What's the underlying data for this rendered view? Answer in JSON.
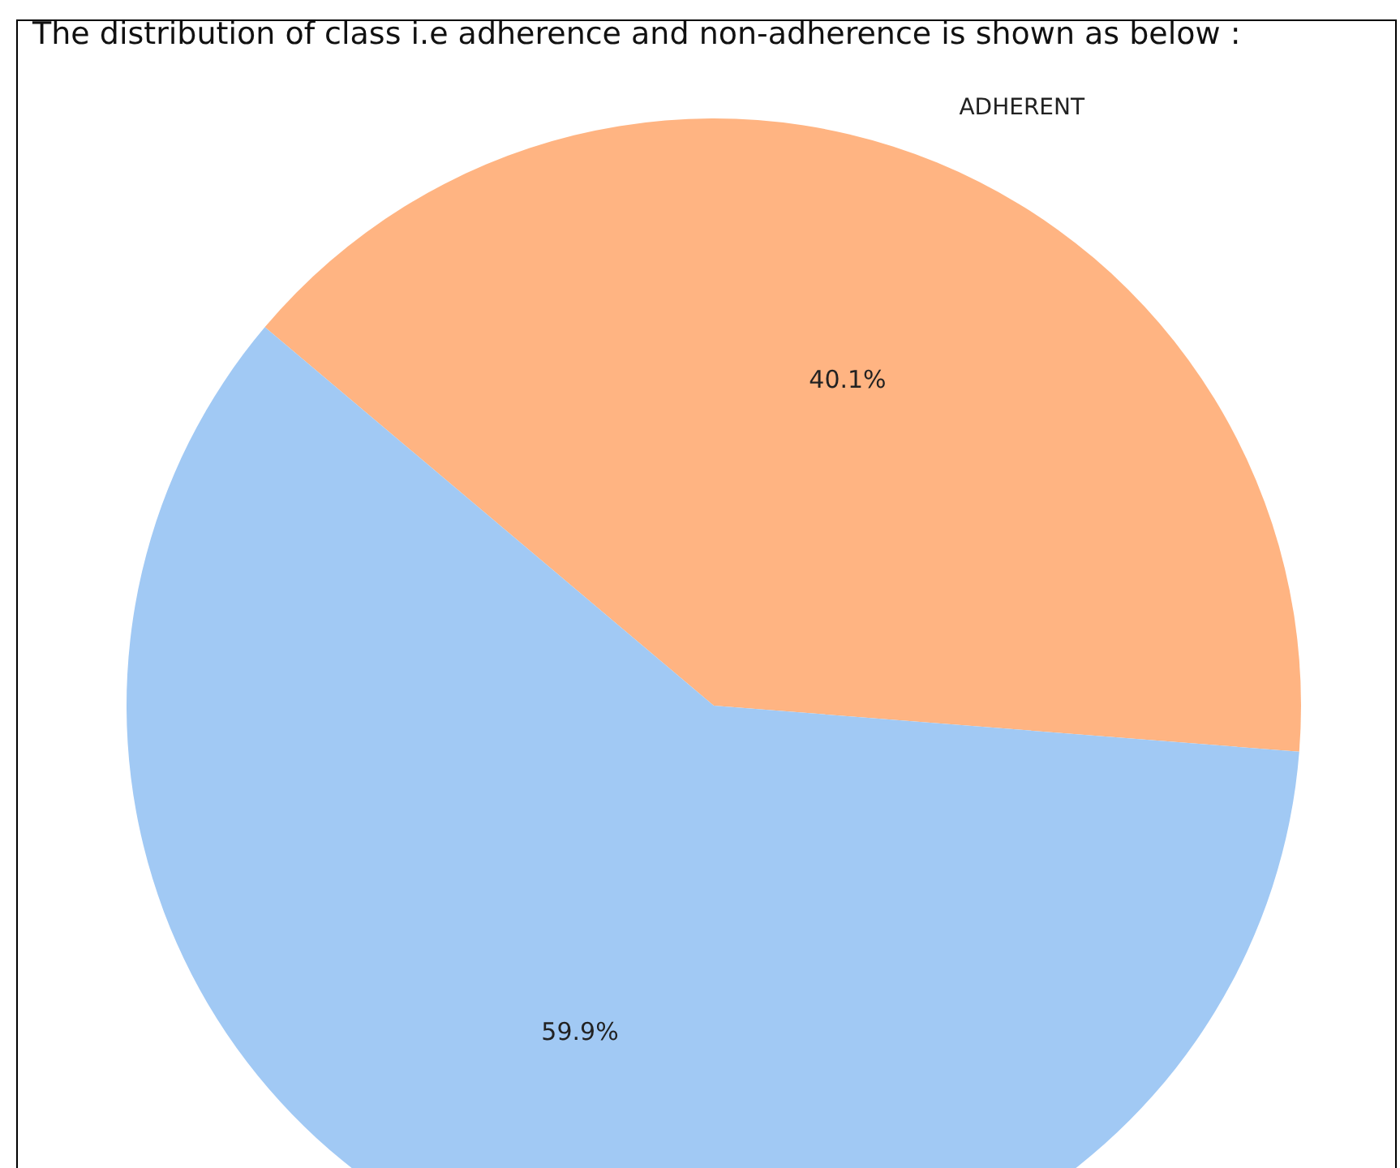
{
  "chart_data": {
    "type": "pie",
    "title": "The distribution of class i.e adherence and non-adherence is shown as below :",
    "categories": [
      "ADHERENT",
      null
    ],
    "values": [
      40.1,
      59.9
    ],
    "colors": [
      "#ffb482",
      "#a1c9f4"
    ],
    "value_labels": [
      "40.1%",
      "59.9%"
    ]
  }
}
